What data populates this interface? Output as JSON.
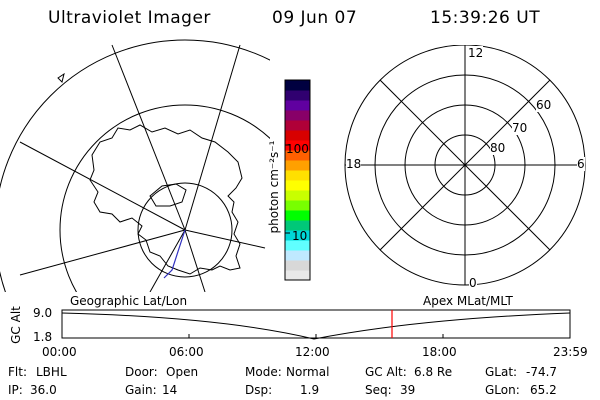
{
  "header": {
    "instrument": "Ultraviolet Imager",
    "date": "09 Jun 07",
    "time": "15:39:26 UT"
  },
  "colorbar": {
    "unit_label": "photon cm⁻²s⁻¹",
    "tick_100": "100",
    "tick_10": "10",
    "colors": [
      "#e9e9e9",
      "#d8d8d8",
      "#bfe9ff",
      "#60ffff",
      "#00d8d8",
      "#00c878",
      "#00ff00",
      "#78ff00",
      "#c8ff00",
      "#ffff00",
      "#ffe000",
      "#ffa000",
      "#ff6000",
      "#ff0000",
      "#d80000",
      "#b00038",
      "#880068",
      "#6000a0",
      "#300070",
      "#000040"
    ]
  },
  "left_map": {
    "label": "Geographic Lat/Lon"
  },
  "right_map": {
    "label": "Apex MLat/MLT",
    "mlt_12": "12",
    "mlt_18": "18",
    "mlt_6": "6",
    "mlt_0": "0",
    "lat_60": "60",
    "lat_70": "70",
    "lat_80": "80"
  },
  "timeline": {
    "ylabel": "GC Alt",
    "y_max": "9.0",
    "y_min": "1.8",
    "x_ticks": [
      "00:00",
      "06:00",
      "12:00",
      "18:00",
      "23:59"
    ],
    "marker_color": "#ff0000"
  },
  "info": {
    "flt_label": "Flt:",
    "flt_value": "LBHL",
    "ip_label": "IP:",
    "ip_value": "36.0",
    "door_label": "Door:",
    "door_value": "Open",
    "gain_label": "Gain:",
    "gain_value": "14",
    "mode_label": "Mode:",
    "mode_value": "Normal",
    "dsp_label": "Dsp:",
    "dsp_value": "1.9",
    "gcalt_label": "GC Alt:",
    "gcalt_value": "6.8 Re",
    "seq_label": "Seq:",
    "seq_value": "39",
    "glat_label": "GLat:",
    "glat_value": "-74.7",
    "glon_label": "GLon:",
    "glon_value": "65.2"
  }
}
